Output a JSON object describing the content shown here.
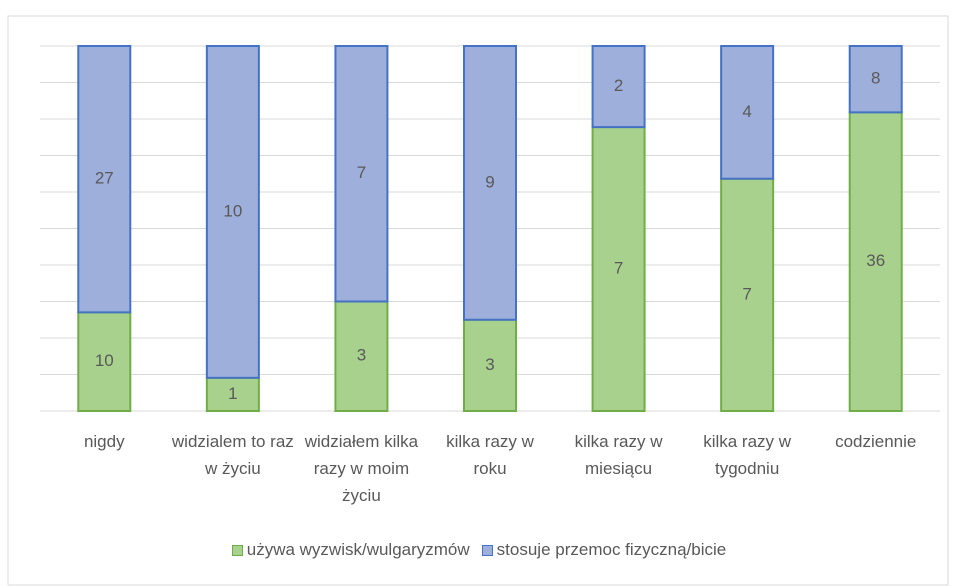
{
  "chart_data": {
    "type": "bar",
    "stacking": "percent",
    "categories": [
      "nigdy",
      "widzialem to raz w życiu",
      "widziałem kilka razy w moim życiu",
      "kilka razy w roku",
      "kilka razy w miesiącu",
      "kilka razy w tygodniu",
      "codziennie"
    ],
    "series": [
      {
        "name": "używa wyzwisk/wulgaryzmów",
        "color": "#a9d18e",
        "stroke": "#70ad47",
        "values": [
          10,
          1,
          3,
          3,
          7,
          7,
          36
        ]
      },
      {
        "name": "stosuje przemoc fizyczną/bicie",
        "color": "#9eafdb",
        "stroke": "#4472c4",
        "values": [
          27,
          10,
          7,
          9,
          2,
          4,
          8
        ]
      }
    ],
    "ylim": [
      0,
      100
    ],
    "yticks": [
      0,
      10,
      20,
      30,
      40,
      50,
      60,
      70,
      80,
      90,
      100
    ],
    "grid": true,
    "legend": "bottom"
  }
}
